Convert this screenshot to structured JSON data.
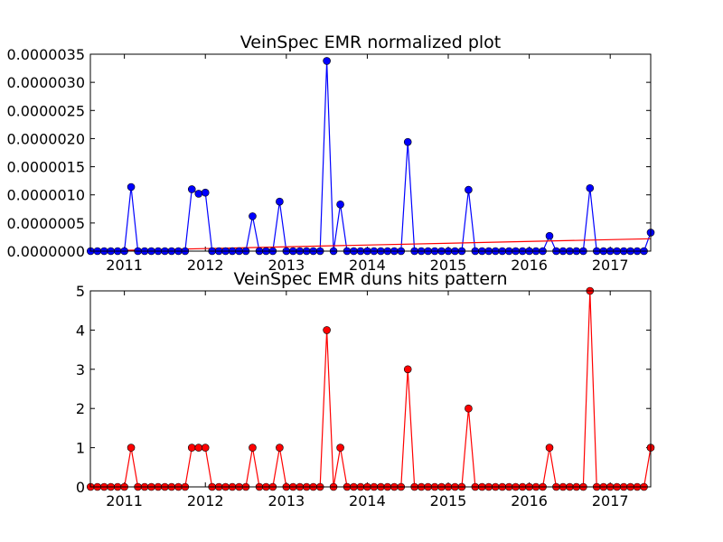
{
  "chart_data": [
    {
      "type": "line",
      "title": "VeinSpec EMR normalized plot",
      "xlabel": "",
      "ylabel": "",
      "xlim": [
        2010.58,
        2017.5
      ],
      "ylim": [
        0,
        3.5e-06
      ],
      "yticks": [
        "0.0000000",
        "0.0000005",
        "0.0000010",
        "0.0000015",
        "0.0000020",
        "0.0000025",
        "0.0000030",
        "0.0000035"
      ],
      "xticks": [
        "2011",
        "2012",
        "2013",
        "2014",
        "2015",
        "2016",
        "2017"
      ],
      "marker_color": "#0000ff",
      "series": [
        {
          "color": "#0000ff",
          "x": [
            2010.583,
            2010.667,
            2010.75,
            2010.833,
            2010.917,
            2011.0,
            2011.083,
            2011.167,
            2011.25,
            2011.333,
            2011.417,
            2011.5,
            2011.583,
            2011.667,
            2011.75,
            2011.833,
            2011.917,
            2012.0,
            2012.083,
            2012.167,
            2012.25,
            2012.333,
            2012.417,
            2012.5,
            2012.583,
            2012.667,
            2012.75,
            2012.833,
            2012.917,
            2013.0,
            2013.083,
            2013.167,
            2013.25,
            2013.333,
            2013.417,
            2013.5,
            2013.583,
            2013.667,
            2013.75,
            2013.833,
            2013.917,
            2014.0,
            2014.083,
            2014.167,
            2014.25,
            2014.333,
            2014.417,
            2014.5,
            2014.583,
            2014.667,
            2014.75,
            2014.833,
            2014.917,
            2015.0,
            2015.083,
            2015.167,
            2015.25,
            2015.333,
            2015.417,
            2015.5,
            2015.583,
            2015.667,
            2015.75,
            2015.833,
            2015.917,
            2016.0,
            2016.083,
            2016.167,
            2016.25,
            2016.333,
            2016.417,
            2016.5,
            2016.583,
            2016.667,
            2016.75,
            2016.833,
            2016.917,
            2017.0,
            2017.083,
            2017.167,
            2017.25,
            2017.333,
            2017.417,
            2017.5
          ],
          "y": [
            0,
            0,
            0,
            0,
            0,
            0,
            1.14e-06,
            0,
            0,
            0,
            0,
            0,
            0,
            0,
            0,
            1.1e-06,
            1.02e-06,
            1.04e-06,
            0,
            0,
            0,
            0,
            0,
            0,
            6.2e-07,
            0,
            0,
            0,
            8.8e-07,
            0,
            0,
            0,
            0,
            0,
            0,
            3.38e-06,
            0,
            8.3e-07,
            0,
            0,
            0,
            0,
            0,
            0,
            0,
            0,
            0,
            1.94e-06,
            0,
            0,
            0,
            0,
            0,
            0,
            0,
            0,
            1.09e-06,
            0,
            0,
            0,
            0,
            0,
            0,
            0,
            0,
            0,
            0,
            0,
            2.7e-07,
            0,
            0,
            0,
            0,
            0,
            1.12e-06,
            0,
            0,
            0,
            0,
            0,
            0,
            0,
            0,
            3.3e-07
          ]
        },
        {
          "color": "#ff0000",
          "x": [
            2010.583,
            2017.5
          ],
          "y": [
            0.0,
            2.2e-07
          ]
        }
      ]
    },
    {
      "type": "line",
      "title": "VeinSpec EMR duns hits pattern",
      "xlabel": "",
      "ylabel": "",
      "xlim": [
        2010.58,
        2017.5
      ],
      "ylim": [
        0,
        5
      ],
      "yticks": [
        "0",
        "1",
        "2",
        "3",
        "4",
        "5"
      ],
      "xticks": [
        "2011",
        "2012",
        "2013",
        "2014",
        "2015",
        "2016",
        "2017"
      ],
      "marker_color": "#ff0000",
      "series": [
        {
          "color": "#ff0000",
          "x": [
            2010.583,
            2010.667,
            2010.75,
            2010.833,
            2010.917,
            2011.0,
            2011.083,
            2011.167,
            2011.25,
            2011.333,
            2011.417,
            2011.5,
            2011.583,
            2011.667,
            2011.75,
            2011.833,
            2011.917,
            2012.0,
            2012.083,
            2012.167,
            2012.25,
            2012.333,
            2012.417,
            2012.5,
            2012.583,
            2012.667,
            2012.75,
            2012.833,
            2012.917,
            2013.0,
            2013.083,
            2013.167,
            2013.25,
            2013.333,
            2013.417,
            2013.5,
            2013.583,
            2013.667,
            2013.75,
            2013.833,
            2013.917,
            2014.0,
            2014.083,
            2014.167,
            2014.25,
            2014.333,
            2014.417,
            2014.5,
            2014.583,
            2014.667,
            2014.75,
            2014.833,
            2014.917,
            2015.0,
            2015.083,
            2015.167,
            2015.25,
            2015.333,
            2015.417,
            2015.5,
            2015.583,
            2015.667,
            2015.75,
            2015.833,
            2015.917,
            2016.0,
            2016.083,
            2016.167,
            2016.25,
            2016.333,
            2016.417,
            2016.5,
            2016.583,
            2016.667,
            2016.75,
            2016.833,
            2016.917,
            2017.0,
            2017.083,
            2017.167,
            2017.25,
            2017.333,
            2017.417,
            2017.5
          ],
          "y": [
            0,
            0,
            0,
            0,
            0,
            0,
            1,
            0,
            0,
            0,
            0,
            0,
            0,
            0,
            0,
            1,
            1,
            1,
            0,
            0,
            0,
            0,
            0,
            0,
            1,
            0,
            0,
            0,
            1,
            0,
            0,
            0,
            0,
            0,
            0,
            4,
            0,
            1,
            0,
            0,
            0,
            0,
            0,
            0,
            0,
            0,
            0,
            3,
            0,
            0,
            0,
            0,
            0,
            0,
            0,
            0,
            2,
            0,
            0,
            0,
            0,
            0,
            0,
            0,
            0,
            0,
            0,
            0,
            1,
            0,
            0,
            0,
            0,
            0,
            5,
            0,
            0,
            0,
            0,
            0,
            0,
            0,
            0,
            1
          ]
        }
      ]
    }
  ]
}
